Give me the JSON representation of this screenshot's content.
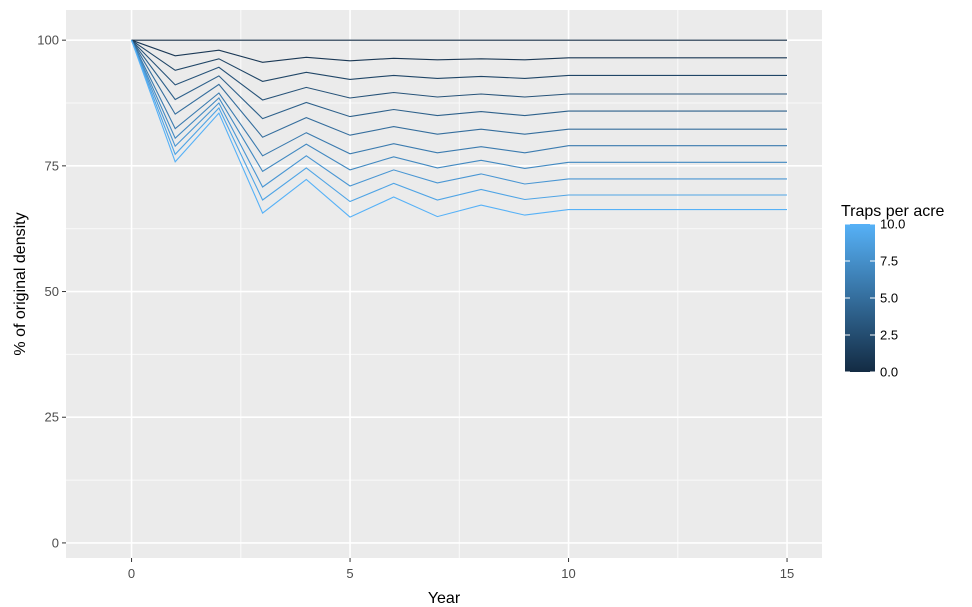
{
  "chart_data": {
    "type": "line",
    "title": "",
    "xlabel": "Year",
    "ylabel": "% of original density",
    "xlim": [
      -1.5,
      15.8
    ],
    "ylim": [
      -3,
      106
    ],
    "x_ticks": [
      0,
      5,
      10,
      15
    ],
    "x_tick_labels": [
      "0",
      "5",
      "10",
      "15"
    ],
    "y_ticks": [
      0,
      25,
      50,
      75,
      100
    ],
    "y_tick_labels": [
      "0",
      "25",
      "50",
      "75",
      "100"
    ],
    "grid": true,
    "background": "#ebebeb",
    "x": [
      0,
      1,
      2,
      3,
      4,
      5,
      6,
      7,
      8,
      9,
      10,
      11,
      12,
      13,
      14,
      15
    ],
    "series": [
      {
        "traps": 0,
        "values": [
          100,
          100,
          100,
          100,
          100,
          100,
          100,
          100,
          100,
          100,
          100,
          100,
          100,
          100,
          100,
          100
        ]
      },
      {
        "traps": 1,
        "values": [
          100,
          96.9,
          98.0,
          95.6,
          96.6,
          95.9,
          96.4,
          96.1,
          96.3,
          96.1,
          96.5,
          96.5,
          96.5,
          96.5,
          96.5,
          96.5
        ]
      },
      {
        "traps": 2,
        "values": [
          100,
          94.0,
          96.3,
          91.8,
          93.6,
          92.2,
          93.0,
          92.4,
          92.8,
          92.4,
          93.0,
          93.0,
          93.0,
          93.0,
          93.0,
          93.0
        ]
      },
      {
        "traps": 3,
        "values": [
          100,
          91.1,
          94.6,
          88.1,
          90.6,
          88.5,
          89.6,
          88.7,
          89.3,
          88.7,
          89.3,
          89.3,
          89.3,
          89.3,
          89.3,
          89.3
        ]
      },
      {
        "traps": 4,
        "values": [
          100,
          88.2,
          92.9,
          84.4,
          87.6,
          84.8,
          86.2,
          85.0,
          85.8,
          85.0,
          85.9,
          85.9,
          85.9,
          85.9,
          85.9,
          85.9
        ]
      },
      {
        "traps": 5,
        "values": [
          100,
          85.3,
          91.2,
          80.7,
          84.6,
          81.1,
          82.8,
          81.3,
          82.3,
          81.3,
          82.3,
          82.3,
          82.3,
          82.3,
          82.3,
          82.3
        ]
      },
      {
        "traps": 6,
        "values": [
          100,
          82.4,
          89.5,
          77.0,
          81.6,
          77.4,
          79.4,
          77.6,
          78.8,
          77.6,
          79.0,
          79.0,
          79.0,
          79.0,
          79.0,
          79.0
        ]
      },
      {
        "traps": 7,
        "values": [
          100,
          80.5,
          88.5,
          73.9,
          79.3,
          74.2,
          76.8,
          74.6,
          76.1,
          74.5,
          75.7,
          75.7,
          75.7,
          75.7,
          75.7,
          75.7
        ]
      },
      {
        "traps": 8,
        "values": [
          100,
          78.9,
          87.5,
          70.8,
          77.0,
          71.0,
          74.2,
          71.6,
          73.4,
          71.4,
          72.4,
          72.4,
          72.4,
          72.4,
          72.4,
          72.4
        ]
      },
      {
        "traps": 9,
        "values": [
          100,
          77.3,
          86.5,
          68.2,
          74.6,
          67.9,
          71.5,
          68.2,
          70.3,
          68.3,
          69.2,
          69.2,
          69.2,
          69.2,
          69.2,
          69.2
        ]
      },
      {
        "traps": 10,
        "values": [
          100,
          75.8,
          85.5,
          65.6,
          72.3,
          64.8,
          68.8,
          64.9,
          67.2,
          65.2,
          66.3,
          66.3,
          66.3,
          66.3,
          66.3,
          66.3
        ]
      }
    ],
    "legend": {
      "title": "Traps per acre",
      "placement": "right",
      "min": 0,
      "max": 10,
      "low_color": "#132b43",
      "high_color": "#56b1f7",
      "breaks": [
        0,
        2.5,
        5,
        7.5,
        10
      ],
      "break_labels": [
        "0.0",
        "2.5",
        "5.0",
        "7.5",
        "10.0"
      ]
    }
  }
}
